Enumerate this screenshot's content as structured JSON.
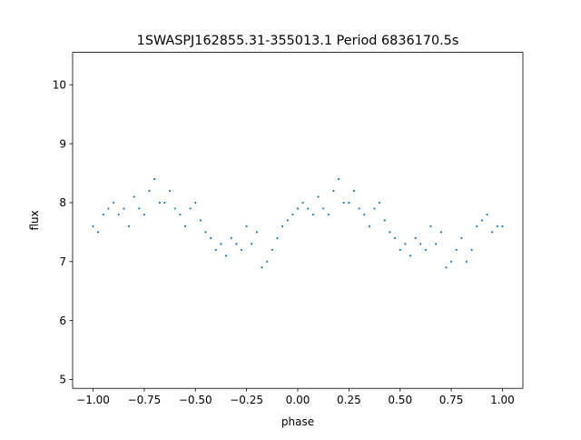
{
  "chart_data": {
    "type": "scatter",
    "title": "1SWASPJ162855.31-355013.1 Period 6836170.5s",
    "xlabel": "phase",
    "ylabel": "flux",
    "xlim": [
      -1.1,
      1.1
    ],
    "ylim": [
      4.85,
      10.55
    ],
    "xticks": [
      -1.0,
      -0.75,
      -0.5,
      -0.25,
      0.0,
      0.25,
      0.5,
      0.75,
      1.0
    ],
    "xtick_labels": [
      "−1.00",
      "−0.75",
      "−0.50",
      "−0.25",
      "0.00",
      "0.25",
      "0.50",
      "0.75",
      "1.00"
    ],
    "yticks": [
      5,
      6,
      7,
      8,
      9,
      10
    ],
    "ytick_labels": [
      "5",
      "6",
      "7",
      "8",
      "9",
      "10"
    ],
    "grid": false,
    "marker_color": "#1f77b4",
    "series": [
      {
        "x": [
          -1.0,
          -0.975,
          -0.95,
          -0.925,
          -0.9,
          -0.875,
          -0.85,
          -0.825,
          -0.8,
          -0.775,
          -0.75,
          -0.725,
          -0.7,
          -0.675,
          -0.65,
          -0.625,
          -0.6,
          -0.575,
          -0.55,
          -0.525,
          -0.5,
          -0.475,
          -0.45,
          -0.425,
          -0.4,
          -0.375,
          -0.35,
          -0.325,
          -0.3,
          -0.275,
          -0.25,
          -0.225,
          -0.2,
          -0.175,
          -0.15,
          -0.125,
          -0.1,
          -0.075,
          -0.05,
          -0.025,
          0.0,
          0.025,
          0.05,
          0.075,
          0.1,
          0.125,
          0.15,
          0.175,
          0.2,
          0.225,
          0.25,
          0.275,
          0.3,
          0.325,
          0.35,
          0.375,
          0.4,
          0.425,
          0.45,
          0.475,
          0.5,
          0.525,
          0.55,
          0.575,
          0.6,
          0.625,
          0.65,
          0.675,
          0.7,
          0.725,
          0.75,
          0.775,
          0.8,
          0.825,
          0.85,
          0.875,
          0.9,
          0.925,
          0.95,
          0.975,
          1.0
        ],
        "y": [
          7.6,
          7.5,
          7.8,
          7.9,
          8.0,
          7.8,
          7.9,
          7.6,
          8.1,
          7.9,
          7.8,
          8.2,
          8.4,
          8.0,
          8.0,
          8.2,
          7.9,
          7.8,
          7.6,
          7.9,
          8.0,
          7.7,
          7.5,
          7.4,
          7.2,
          7.3,
          7.1,
          7.4,
          7.3,
          7.2,
          7.6,
          7.3,
          7.5,
          6.9,
          7.0,
          7.2,
          7.4,
          7.6,
          7.7,
          7.8,
          7.9,
          8.0,
          7.9,
          7.8,
          8.1,
          7.9,
          7.8,
          8.2,
          8.4,
          8.0,
          8.0,
          8.2,
          7.9,
          7.8,
          7.6,
          7.9,
          8.0,
          7.7,
          7.5,
          7.4,
          7.2,
          7.3,
          7.1,
          7.4,
          7.3,
          7.2,
          7.6,
          7.3,
          7.5,
          6.9,
          7.0,
          7.2,
          7.4,
          7.0,
          7.2,
          7.6,
          7.7,
          7.8,
          7.5,
          7.6,
          7.6
        ]
      }
    ]
  }
}
